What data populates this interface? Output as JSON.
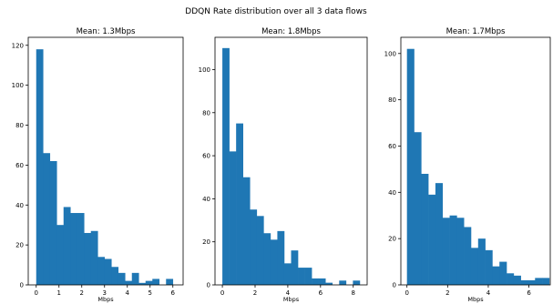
{
  "figure": {
    "suptitle": "DDQN Rate distribution over all 3 data flows",
    "bar_color": "#1f77b4"
  },
  "chart_data": [
    {
      "type": "bar",
      "title": "Mean: 1.3Mbps",
      "xlabel": "Mbps",
      "ylabel": "",
      "xlim": [
        -0.35,
        6.45
      ],
      "ylim": [
        0,
        124
      ],
      "xticks": [
        0,
        1,
        2,
        3,
        4,
        5,
        6
      ],
      "yticks": [
        0,
        20,
        40,
        60,
        80,
        100,
        120
      ],
      "bin_edges": [
        0,
        0.3,
        0.6,
        0.9,
        1.2,
        1.5,
        1.8,
        2.1,
        2.4,
        2.7,
        3.0,
        3.3,
        3.6,
        3.9,
        4.2,
        4.5,
        4.8,
        5.1,
        5.4,
        5.7,
        6.0,
        6.3
      ],
      "values": [
        118,
        66,
        62,
        30,
        39,
        36,
        36,
        26,
        27,
        14,
        13,
        9,
        6,
        2,
        6,
        1,
        2,
        3,
        0,
        3,
        0
      ]
    },
    {
      "type": "bar",
      "title": "Mean: 1.8Mbps",
      "xlabel": "Mbps",
      "ylabel": "",
      "xlim": [
        -0.45,
        8.85
      ],
      "ylim": [
        0,
        115
      ],
      "xticks": [
        0,
        2,
        4,
        6,
        8
      ],
      "yticks": [
        0,
        20,
        40,
        60,
        80,
        100
      ],
      "bin_edges": [
        0,
        0.42,
        0.84,
        1.26,
        1.68,
        2.1,
        2.52,
        2.94,
        3.36,
        3.78,
        4.2,
        4.62,
        5.04,
        5.46,
        5.88,
        6.3,
        6.72,
        7.14,
        7.56,
        7.98,
        8.4
      ],
      "values": [
        110,
        62,
        75,
        50,
        35,
        32,
        24,
        21,
        25,
        10,
        16,
        8,
        8,
        3,
        3,
        1,
        0,
        2,
        0,
        2
      ]
    },
    {
      "type": "bar",
      "title": "Mean: 1.7Mbps",
      "xlabel": "Mbps",
      "ylabel": "",
      "xlim": [
        -0.3,
        7.05
      ],
      "ylim": [
        0,
        107
      ],
      "xticks": [
        0,
        2,
        4,
        6
      ],
      "yticks": [
        0,
        20,
        40,
        60,
        80,
        100
      ],
      "bin_edges": [
        0,
        0.35,
        0.7,
        1.05,
        1.4,
        1.75,
        2.1,
        2.45,
        2.8,
        3.15,
        3.5,
        3.85,
        4.2,
        4.55,
        4.9,
        5.25,
        5.6,
        5.95,
        6.3,
        6.65,
        7.0
      ],
      "values": [
        102,
        66,
        48,
        39,
        44,
        29,
        30,
        29,
        25,
        16,
        20,
        15,
        8,
        10,
        5,
        4,
        2,
        2,
        3,
        3
      ]
    }
  ]
}
